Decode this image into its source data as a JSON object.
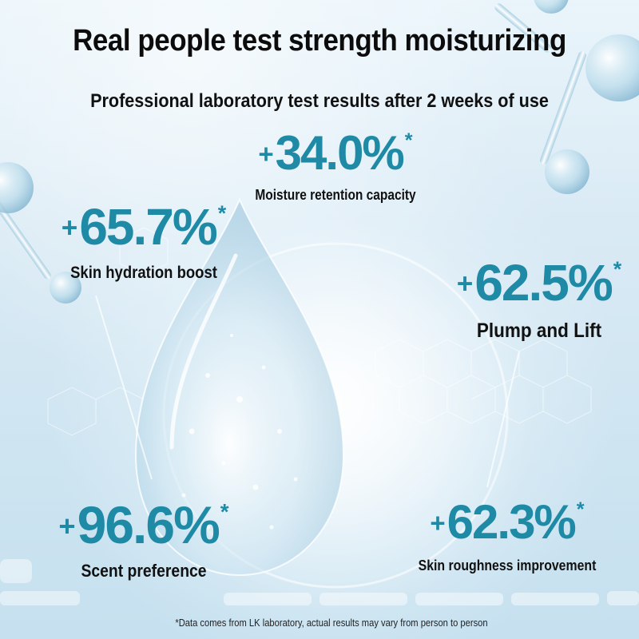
{
  "title": "Real people test strength moisturizing",
  "subtitle": "Professional laboratory test results after 2 weeks of use",
  "colors": {
    "accent": "#1e8aa6",
    "text": "#111111",
    "background": "#d6e9f4"
  },
  "stats": [
    {
      "plus": "+",
      "value": "34.0%",
      "star": "*",
      "label": "Moisture retention capacity"
    },
    {
      "plus": "+",
      "value": "65.7%",
      "star": "*",
      "label": "Skin hydration boost"
    },
    {
      "plus": "+",
      "value": "62.5%",
      "star": "*",
      "label": "Plump and Lift"
    },
    {
      "plus": "+",
      "value": "96.6%",
      "star": "*",
      "label": "Scent preference"
    },
    {
      "plus": "+",
      "value": "62.3%",
      "star": "*",
      "label": "Skin roughness improvement"
    }
  ],
  "disclaimer": "*Data comes from LK laboratory, actual results may vary from person to person"
}
